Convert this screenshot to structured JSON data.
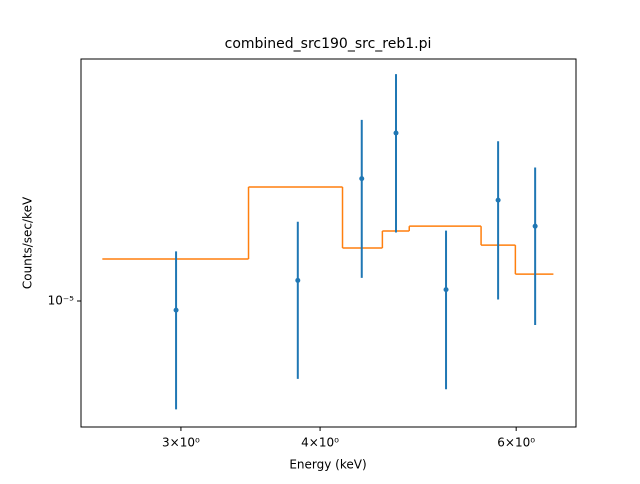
{
  "chart_data": {
    "type": "errorbar-step",
    "title": "combined_src190_src_reb1.pi",
    "x_label": "Energy (keV)",
    "y_label": "Counts/sec/keV",
    "x_log": true,
    "y_log": true,
    "xlim": [
      2.44,
      6.79
    ],
    "ylim": [
      4.26e-06,
      5.15e-05
    ],
    "xticks": [
      {
        "value": 3,
        "label": "3×10⁰"
      },
      {
        "value": 4,
        "label": "4×10⁰"
      },
      {
        "value": 6,
        "label": "6×10⁰"
      }
    ],
    "yticks": [
      {
        "value": 1e-05,
        "label": "10⁻⁵"
      }
    ],
    "data": {
      "color": "#1f77b4",
      "x": [
        2.97,
        3.82,
        4.36,
        4.68,
        5.19,
        5.78,
        6.24
      ],
      "values": [
        9.4e-06,
        1.15e-05,
        2.29e-05,
        3.12e-05,
        1.08e-05,
        1.98e-05,
        1.66e-05
      ],
      "errors": [
        4.6e-06,
        5.6e-06,
        1.12e-05,
        1.53e-05,
        5.3e-06,
        9.7e-06,
        8.1e-06
      ]
    },
    "model": {
      "color": "#ff7f0e",
      "edges": [
        2.55,
        3.45,
        4.19,
        4.55,
        4.81,
        5.58,
        5.99,
        6.48
      ],
      "values": [
        1.329e-05,
        2.165e-05,
        1.432e-05,
        1.607e-05,
        1.66e-05,
        1.46e-05,
        1.2e-05
      ]
    }
  }
}
